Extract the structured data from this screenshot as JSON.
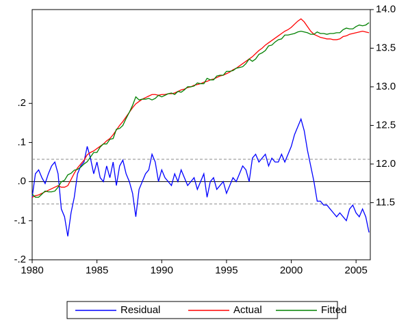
{
  "chart_data": {
    "type": "line",
    "legend": "bottom",
    "x": [
      1980,
      1980.25,
      1980.5,
      1980.75,
      1981,
      1981.25,
      1981.5,
      1981.75,
      1982,
      1982.25,
      1982.5,
      1982.75,
      1983,
      1983.25,
      1983.5,
      1983.75,
      1984,
      1984.25,
      1984.5,
      1984.75,
      1985,
      1985.25,
      1985.5,
      1985.75,
      1986,
      1986.25,
      1986.5,
      1986.75,
      1987,
      1987.25,
      1987.5,
      1987.75,
      1988,
      1988.25,
      1988.5,
      1988.75,
      1989,
      1989.25,
      1989.5,
      1989.75,
      1990,
      1990.25,
      1990.5,
      1990.75,
      1991,
      1991.25,
      1991.5,
      1991.75,
      1992,
      1992.25,
      1992.5,
      1992.75,
      1993,
      1993.25,
      1993.5,
      1993.75,
      1994,
      1994.25,
      1994.5,
      1994.75,
      1995,
      1995.25,
      1995.5,
      1995.75,
      1996,
      1996.25,
      1996.5,
      1996.75,
      1997,
      1997.25,
      1997.5,
      1997.75,
      1998,
      1998.25,
      1998.5,
      1998.75,
      1999,
      1999.25,
      1999.5,
      1999.75,
      2000,
      2000.25,
      2000.5,
      2000.75,
      2001,
      2001.25,
      2001.5,
      2001.75,
      2002,
      2002.25,
      2002.5,
      2002.75,
      2003,
      2003.25,
      2003.5,
      2003.75,
      2004,
      2004.25,
      2004.5,
      2004.75,
      2005,
      2005.25,
      2005.5,
      2005.75,
      2006
    ],
    "xlim": [
      1980,
      2006.1
    ],
    "xticks": [
      1980,
      1985,
      1990,
      1995,
      2000,
      2005
    ],
    "ylim": [
      -0.2,
      0.44
    ],
    "yticks": [
      {
        "value": -0.2,
        "label": "-.2"
      },
      {
        "value": -0.1,
        "label": "-.1"
      },
      {
        "value": 0,
        "label": ".0"
      },
      {
        "value": 0.1,
        "label": ".1"
      },
      {
        "value": 0.2,
        "label": ".2"
      }
    ],
    "y2lim": [
      10.76,
      14.0
    ],
    "y2ticks": [
      11.5,
      {
        "value": 12,
        "label": "12.0"
      },
      12.5,
      {
        "value": 13,
        "label": "13.0"
      },
      13.5,
      {
        "value": 14,
        "label": "14.0"
      }
    ],
    "reference_lines": [
      {
        "value": 0,
        "style": "solid"
      },
      {
        "value": 0.057,
        "style": "dashed"
      },
      {
        "value": -0.057,
        "style": "dashed"
      }
    ],
    "series": [
      {
        "name": "Residual",
        "color": "#0000ff",
        "values": [
          -0.04,
          0.02,
          0.03,
          0.01,
          -0.005,
          0.02,
          0.04,
          0.05,
          0.02,
          -0.07,
          -0.09,
          -0.14,
          -0.08,
          -0.04,
          0.02,
          0.04,
          0.05,
          0.09,
          0.06,
          0.02,
          0.05,
          0.01,
          0,
          0.04,
          0.01,
          0.05,
          -0.01,
          0.04,
          0.055,
          0.02,
          0,
          -0.03,
          -0.09,
          -0.02,
          0,
          0.02,
          0.03,
          0.07,
          0.05,
          0,
          0.03,
          0.01,
          0,
          -0.01,
          0.02,
          0,
          0.03,
          0.01,
          -0.01,
          0,
          0.01,
          -0.02,
          0,
          0.02,
          -0.04,
          0,
          0.01,
          -0.02,
          -0.01,
          0,
          -0.03,
          -0.01,
          0.01,
          0,
          0.02,
          0.04,
          0.03,
          0,
          0.06,
          0.07,
          0.05,
          0.06,
          0.07,
          0.04,
          0.06,
          0.05,
          0.05,
          0.07,
          0.05,
          0.07,
          0.09,
          0.12,
          0.14,
          0.16,
          0.13,
          0.08,
          0.04,
          0,
          -0.05,
          -0.05,
          -0.06,
          -0.06,
          -0.07,
          -0.08,
          -0.09,
          -0.08,
          -0.09,
          -0.1,
          -0.07,
          -0.06,
          -0.08,
          -0.09,
          -0.07,
          -0.09,
          -0.13
        ]
      },
      {
        "name": "Actual",
        "color": "#ff0000",
        "axis": "y2",
        "values": [
          11.57,
          11.59,
          11.6,
          11.62,
          11.64,
          11.66,
          11.68,
          11.7,
          11.72,
          11.7,
          11.7,
          11.72,
          11.8,
          11.88,
          11.95,
          12,
          12.05,
          12.12,
          12.15,
          12.17,
          12.2,
          12.23,
          12.26,
          12.3,
          12.33,
          12.38,
          12.44,
          12.5,
          12.55,
          12.61,
          12.67,
          12.73,
          12.78,
          12.81,
          12.84,
          12.86,
          12.88,
          12.9,
          12.9,
          12.89,
          12.9,
          12.9,
          12.91,
          12.91,
          12.92,
          12.94,
          12.96,
          12.97,
          12.99,
          13,
          13.02,
          13.03,
          13.04,
          13.06,
          13.07,
          13.09,
          13.1,
          13.12,
          13.14,
          13.15,
          13.17,
          13.19,
          13.22,
          13.24,
          13.27,
          13.3,
          13.33,
          13.36,
          13.39,
          13.43,
          13.47,
          13.5,
          13.54,
          13.57,
          13.6,
          13.63,
          13.66,
          13.69,
          13.72,
          13.74,
          13.77,
          13.81,
          13.85,
          13.88,
          13.84,
          13.78,
          13.72,
          13.68,
          13.66,
          13.64,
          13.63,
          13.62,
          13.62,
          13.61,
          13.61,
          13.62,
          13.65,
          13.66,
          13.68,
          13.69,
          13.7,
          13.71,
          13.72,
          13.71,
          13.7
        ]
      },
      {
        "name": "Fitted",
        "color": "#008000",
        "axis": "y2",
        "values": [
          11.61,
          11.57,
          11.57,
          11.61,
          11.65,
          11.64,
          11.64,
          11.65,
          11.7,
          11.77,
          11.79,
          11.86,
          11.88,
          11.92,
          11.93,
          11.96,
          12,
          12.03,
          12.09,
          12.15,
          12.15,
          12.22,
          12.26,
          12.26,
          12.32,
          12.33,
          12.45,
          12.46,
          12.5,
          12.59,
          12.67,
          12.76,
          12.87,
          12.83,
          12.84,
          12.84,
          12.85,
          12.83,
          12.85,
          12.89,
          12.87,
          12.89,
          12.91,
          12.92,
          12.9,
          12.94,
          12.93,
          12.96,
          13,
          13,
          13.01,
          13.05,
          13.04,
          13.04,
          13.11,
          13.09,
          13.09,
          13.14,
          13.15,
          13.15,
          13.2,
          13.2,
          13.21,
          13.24,
          13.25,
          13.26,
          13.3,
          13.36,
          13.33,
          13.36,
          13.42,
          13.44,
          13.47,
          13.53,
          13.54,
          13.58,
          13.61,
          13.62,
          13.67,
          13.67,
          13.68,
          13.69,
          13.71,
          13.72,
          13.71,
          13.7,
          13.68,
          13.68,
          13.71,
          13.69,
          13.69,
          13.68,
          13.69,
          13.69,
          13.7,
          13.7,
          13.74,
          13.76,
          13.75,
          13.75,
          13.78,
          13.8,
          13.79,
          13.8,
          13.83
        ]
      }
    ]
  }
}
